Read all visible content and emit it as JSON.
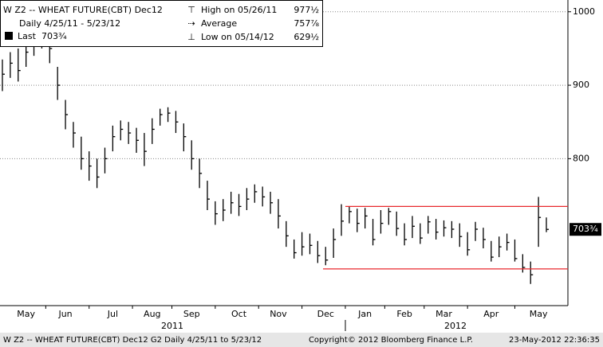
{
  "chart_data": {
    "type": "ohlc",
    "title": "W Z2 -- WHEAT FUTURE(CBT) Dec12",
    "subtitle": "Daily 4/25/11 - 5/23/12",
    "categories": [
      null,
      null,
      null,
      "May",
      null,
      null,
      null,
      null,
      "Jun",
      null,
      null,
      null,
      null,
      null,
      "Jul",
      null,
      null,
      null,
      null,
      "Aug",
      null,
      null,
      null,
      null,
      "Sep",
      null,
      null,
      null,
      null,
      null,
      "Oct",
      null,
      null,
      null,
      null,
      "Nov",
      null,
      null,
      null,
      null,
      null,
      "Dec",
      null,
      null,
      null,
      null,
      "Jan",
      null,
      null,
      null,
      null,
      "Feb",
      null,
      null,
      null,
      null,
      "Mar",
      null,
      null,
      null,
      null,
      null,
      "Apr",
      null,
      null,
      null,
      null,
      null,
      "May",
      null
    ],
    "x_groups": [
      "2011",
      "2012"
    ],
    "series": [
      {
        "name": "Last",
        "color": "#000000",
        "high": [
          935,
          945,
          950,
          958,
          970,
          977.5,
          968,
          925,
          880,
          850,
          830,
          810,
          800,
          815,
          845,
          852,
          850,
          842,
          835,
          855,
          868,
          870,
          865,
          848,
          825,
          800,
          770,
          742,
          745,
          755,
          752,
          760,
          765,
          762,
          755,
          745,
          715,
          690,
          700,
          698,
          688,
          680,
          705,
          738,
          735,
          732,
          733,
          718,
          730,
          733,
          728,
          712,
          722,
          712,
          722,
          718,
          716,
          715,
          712,
          700,
          714,
          706,
          688,
          694,
          698,
          690,
          670,
          660,
          748,
          720
        ],
        "low": [
          892,
          910,
          905,
          925,
          940,
          950,
          930,
          880,
          840,
          815,
          785,
          770,
          760,
          780,
          810,
          825,
          820,
          808,
          790,
          820,
          845,
          850,
          835,
          810,
          785,
          760,
          730,
          710,
          715,
          725,
          722,
          730,
          740,
          735,
          725,
          705,
          680,
          664,
          668,
          670,
          658,
          655,
          665,
          695,
          712,
          700,
          705,
          682,
          698,
          710,
          695,
          682,
          692,
          684,
          698,
          690,
          694,
          692,
          680,
          668,
          688,
          678,
          660,
          666,
          675,
          660,
          645,
          629.5,
          680,
          700
        ],
        "close": [
          915,
          930,
          920,
          945,
          955,
          965,
          950,
          900,
          860,
          835,
          800,
          790,
          775,
          800,
          830,
          840,
          835,
          825,
          810,
          840,
          860,
          862,
          850,
          830,
          800,
          780,
          745,
          725,
          730,
          740,
          735,
          745,
          755,
          748,
          740,
          722,
          695,
          672,
          680,
          682,
          668,
          662,
          690,
          715,
          728,
          712,
          722,
          690,
          712,
          728,
          705,
          690,
          708,
          692,
          714,
          700,
          706,
          704,
          694,
          676,
          704,
          690,
          666,
          680,
          686,
          664,
          652,
          642,
          720,
          703.75
        ]
      }
    ],
    "last": {
      "value": 703.75,
      "label": "703¾"
    },
    "legend_stats": [
      {
        "label": "High on 05/26/11",
        "value": 977.5,
        "value_label": "977½"
      },
      {
        "label": "Average",
        "value": 757.875,
        "value_label": "757⅞"
      },
      {
        "label": "Low on 05/14/12",
        "value": 629.5,
        "value_label": "629½"
      }
    ],
    "channel_lines": [
      {
        "value": 735,
        "color": "#e8282d"
      },
      {
        "value": 650,
        "color": "#e8282d"
      }
    ],
    "ylim": [
      600,
      1016
    ],
    "yticks": [
      800,
      900,
      1000
    ],
    "grid": true,
    "footer": {
      "left": "W Z2 -- WHEAT FUTURE(CBT) Dec12    G2  Daily  4/25/11 to 5/23/12",
      "center": "Copyright© 2012 Bloomberg Finance L.P.",
      "right": "23-May-2012 22:36:35"
    }
  }
}
